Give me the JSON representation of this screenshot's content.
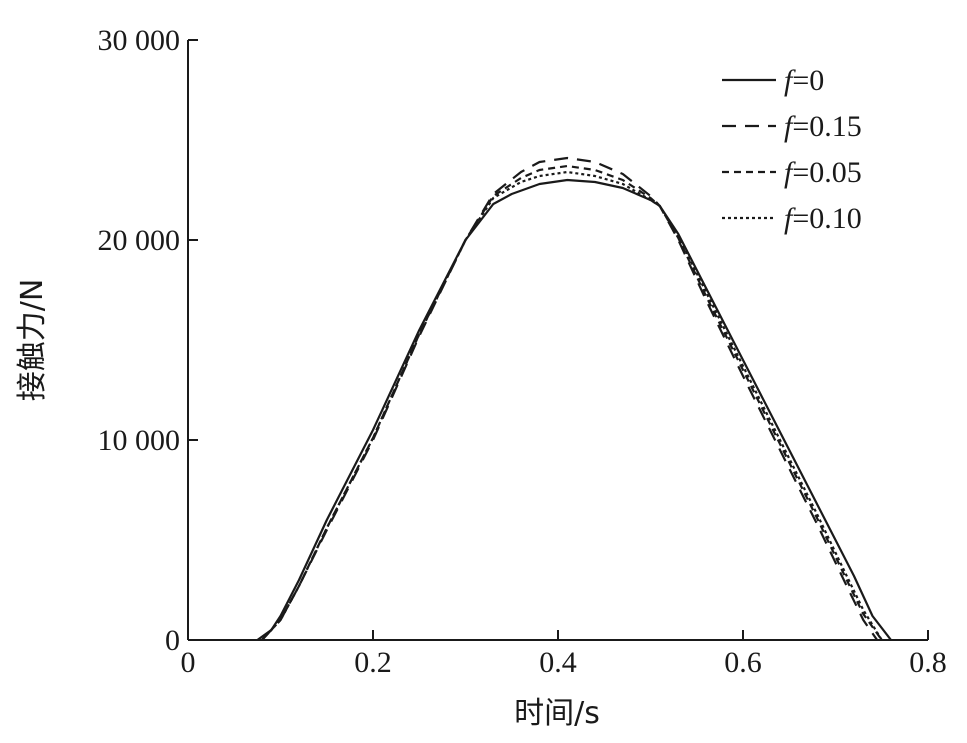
{
  "chart_data": {
    "type": "line",
    "title": "",
    "xlabel": "时间/s",
    "ylabel": "接触力/N",
    "xlim": [
      0,
      0.8
    ],
    "ylim": [
      0,
      30000
    ],
    "xticks": [
      0,
      0.2,
      0.4,
      0.6,
      0.8
    ],
    "xtick_labels": [
      "0",
      "0.2",
      "0.4",
      "0.6",
      "0.8"
    ],
    "yticks": [
      0,
      10000,
      20000,
      30000
    ],
    "ytick_labels": [
      "0",
      "10 000",
      "20 000",
      "30 000"
    ],
    "grid": false,
    "legend_position": "top-right",
    "line_color": "#1a1a1a",
    "series": [
      {
        "name": "f=0",
        "legend_var": "f",
        "legend_value": "=0",
        "dash": "solid",
        "x": [
          0.075,
          0.09,
          0.1,
          0.12,
          0.15,
          0.2,
          0.25,
          0.3,
          0.33,
          0.35,
          0.38,
          0.41,
          0.44,
          0.47,
          0.5,
          0.51,
          0.53,
          0.56,
          0.6,
          0.64,
          0.68,
          0.72,
          0.74,
          0.76
        ],
        "y": [
          0,
          500,
          1200,
          3000,
          6000,
          10500,
          15500,
          20000,
          21800,
          22300,
          22800,
          23000,
          22900,
          22600,
          22000,
          21700,
          20300,
          17600,
          14000,
          10400,
          6800,
          3200,
          1200,
          0
        ]
      },
      {
        "name": "f=0.15",
        "legend_var": "f",
        "legend_value": "=0.15",
        "dash": "long-dash",
        "x": [
          0.08,
          0.1,
          0.12,
          0.15,
          0.2,
          0.25,
          0.3,
          0.33,
          0.36,
          0.38,
          0.41,
          0.44,
          0.47,
          0.5,
          0.51,
          0.53,
          0.56,
          0.6,
          0.64,
          0.68,
          0.71,
          0.73,
          0.745
        ],
        "y": [
          0,
          1000,
          2700,
          5500,
          10000,
          15200,
          20000,
          22300,
          23400,
          23900,
          24100,
          23900,
          23300,
          22200,
          21700,
          20000,
          17000,
          13200,
          9500,
          5800,
          2900,
          1000,
          0
        ]
      },
      {
        "name": "f=0.05",
        "legend_var": "f",
        "legend_value": "=0.05",
        "dash": "short-dash",
        "x": [
          0.08,
          0.1,
          0.12,
          0.15,
          0.2,
          0.25,
          0.3,
          0.33,
          0.36,
          0.38,
          0.41,
          0.44,
          0.47,
          0.5,
          0.51,
          0.53,
          0.56,
          0.6,
          0.64,
          0.68,
          0.71,
          0.73,
          0.75
        ],
        "y": [
          0,
          1000,
          2700,
          5600,
          10100,
          15300,
          20000,
          22200,
          23100,
          23500,
          23700,
          23500,
          23000,
          22100,
          21700,
          20100,
          17200,
          13500,
          9800,
          6100,
          3200,
          1300,
          0
        ]
      },
      {
        "name": "f=0.10",
        "legend_var": "f",
        "legend_value": "=0.10",
        "dash": "dotted",
        "x": [
          0.08,
          0.1,
          0.12,
          0.15,
          0.2,
          0.25,
          0.3,
          0.33,
          0.36,
          0.38,
          0.41,
          0.44,
          0.47,
          0.5,
          0.51,
          0.53,
          0.56,
          0.6,
          0.64,
          0.68,
          0.71,
          0.73,
          0.75
        ],
        "y": [
          0,
          1000,
          2700,
          5600,
          10100,
          15300,
          20000,
          22100,
          22900,
          23200,
          23400,
          23200,
          22800,
          22000,
          21700,
          20200,
          17400,
          13700,
          10000,
          6300,
          3400,
          1500,
          0
        ]
      }
    ]
  }
}
